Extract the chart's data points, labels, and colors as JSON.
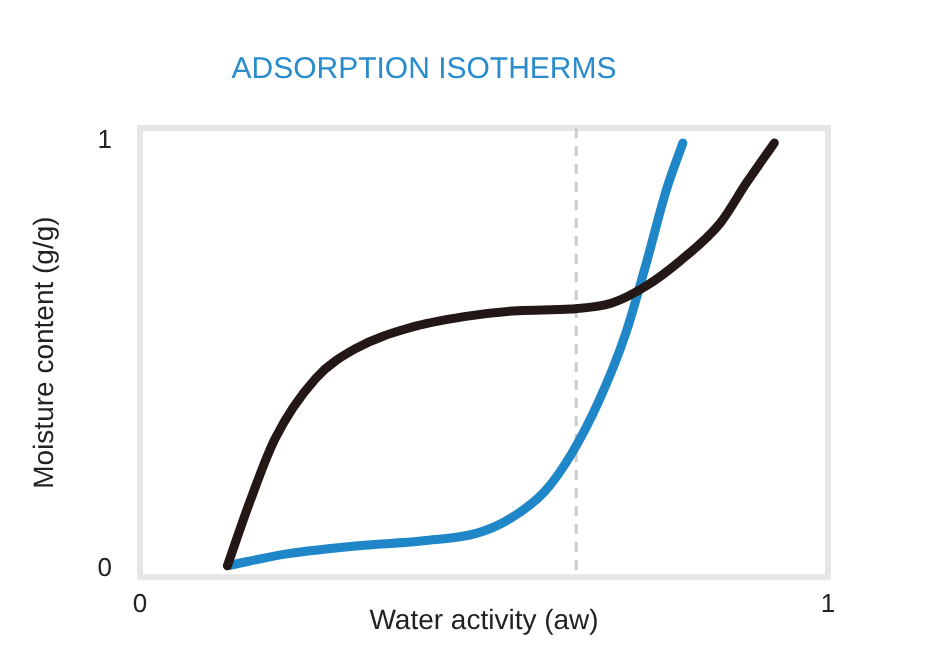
{
  "chart_data": {
    "type": "line",
    "title": "ADSORPTION ISOTHERMS",
    "xlabel": "Water activity (aw)",
    "ylabel": "Moisture content (g/g)",
    "xlim": [
      0,
      1
    ],
    "xticks": [
      0,
      1
    ],
    "ylim": [
      -0.02,
      1.03
    ],
    "yticks": [
      0,
      1
    ],
    "grid": false,
    "legend": false,
    "marker": "none",
    "line_style": "solid",
    "series": [
      {
        "color": "#231815",
        "x": [
          0.127,
          0.157,
          0.196,
          0.255,
          0.314,
          0.392,
          0.471,
          0.549,
          0.627,
          0.686,
          0.735,
          0.784,
          0.843,
          0.882,
          0.922
        ],
        "values": [
          0.007,
          0.145,
          0.303,
          0.444,
          0.515,
          0.563,
          0.589,
          0.603,
          0.607,
          0.621,
          0.66,
          0.718,
          0.807,
          0.903,
          0.995
        ]
      },
      {
        "color": "#1f86c8",
        "x": [
          0.127,
          0.216,
          0.314,
          0.412,
          0.49,
          0.539,
          0.588,
          0.627,
          0.667,
          0.706,
          0.735,
          0.765,
          0.789
        ],
        "values": [
          0.007,
          0.035,
          0.053,
          0.065,
          0.083,
          0.118,
          0.18,
          0.268,
          0.392,
          0.55,
          0.709,
          0.885,
          0.995
        ]
      }
    ],
    "ref_lines": [
      {
        "axis": "x",
        "value": 0.634,
        "color": "#cccccc",
        "line_style": "dashed"
      }
    ]
  }
}
